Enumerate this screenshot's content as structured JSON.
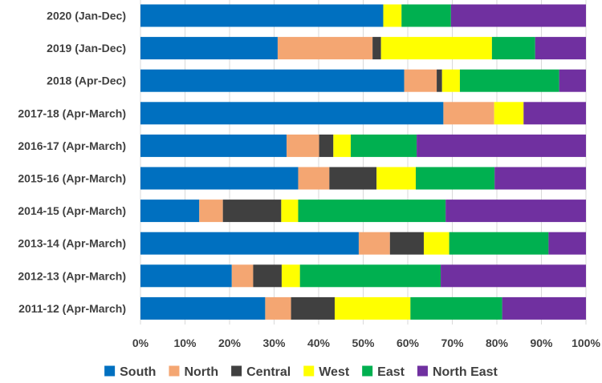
{
  "chart_data": {
    "type": "bar",
    "orientation": "horizontal",
    "stacked": "percent",
    "categories": [
      "2020 (Jan-Dec)",
      "2019 (Jan-Dec)",
      "2018 (Apr-Dec)",
      "2017-18 (Apr-March)",
      "2016-17 (Apr-March)",
      "2015-16 (Apr-March)",
      "2014-15 (Apr-March)",
      "2013-14 (Apr-March)",
      "2012-13 (Apr-March)",
      "2011-12 (Apr-March)"
    ],
    "series": [
      {
        "name": "South",
        "color": "#0070C0",
        "values": [
          54.5,
          30.8,
          59.2,
          68.0,
          32.8,
          35.4,
          13.2,
          49.0,
          20.5,
          28.0
        ]
      },
      {
        "name": "North",
        "color": "#F4A672",
        "values": [
          0.0,
          21.3,
          7.3,
          11.4,
          7.3,
          7.0,
          5.3,
          7.0,
          4.8,
          5.8
        ]
      },
      {
        "name": "Central",
        "color": "#404040",
        "values": [
          0.0,
          1.9,
          1.2,
          0.0,
          3.2,
          10.6,
          13.1,
          7.6,
          6.4,
          9.8
        ]
      },
      {
        "name": "West",
        "color": "#FFFF00",
        "values": [
          4.1,
          24.9,
          4.0,
          6.6,
          3.9,
          8.8,
          3.8,
          5.7,
          4.1,
          17.0
        ]
      },
      {
        "name": "East",
        "color": "#00B050",
        "values": [
          11.1,
          9.7,
          22.3,
          0.0,
          14.8,
          17.7,
          33.1,
          22.3,
          31.6,
          20.6
        ]
      },
      {
        "name": "North East",
        "color": "#7030A0",
        "values": [
          30.3,
          11.4,
          6.0,
          14.0,
          38.0,
          20.5,
          31.5,
          8.4,
          32.6,
          18.8
        ]
      }
    ],
    "x_ticks": [
      "0%",
      "10%",
      "20%",
      "30%",
      "40%",
      "50%",
      "60%",
      "70%",
      "80%",
      "90%",
      "100%"
    ],
    "xlim": [
      0,
      100
    ],
    "title": "",
    "xlabel": "",
    "ylabel": "",
    "grid": true,
    "legend_position": "bottom"
  }
}
